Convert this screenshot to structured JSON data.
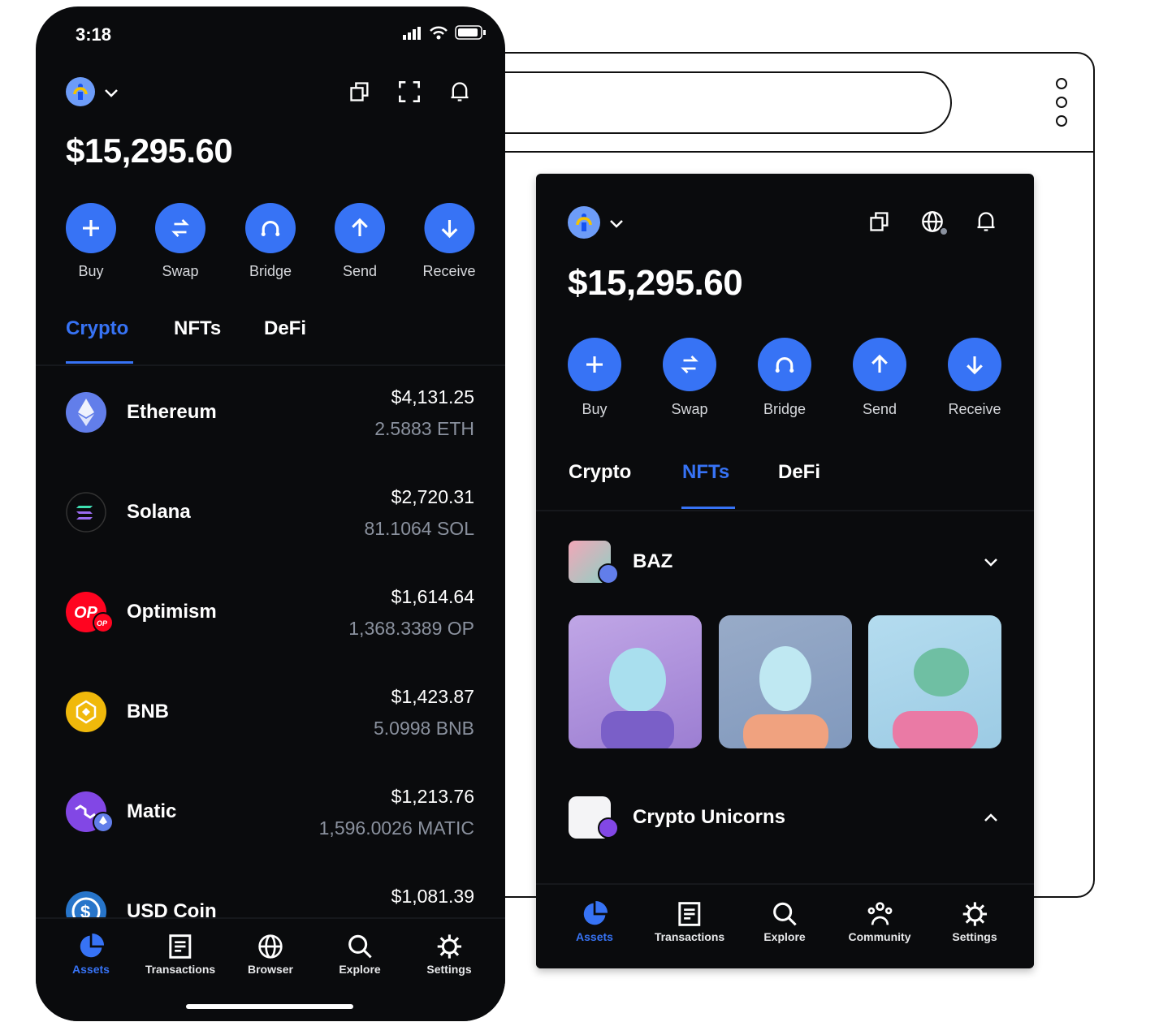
{
  "colors": {
    "accent": "#3773f5",
    "background": "#0a0b0d",
    "secondary_text": "#8a919e"
  },
  "mobile": {
    "status_bar": {
      "time": "3:18",
      "icons": [
        "signal-icon",
        "wifi-icon",
        "battery-icon"
      ]
    },
    "header_icons": [
      "copy-icon",
      "scan-icon",
      "bell-icon"
    ],
    "balance": "$15,295.60",
    "actions": [
      {
        "label": "Buy",
        "icon": "plus-icon"
      },
      {
        "label": "Swap",
        "icon": "swap-icon"
      },
      {
        "label": "Bridge",
        "icon": "bridge-icon"
      },
      {
        "label": "Send",
        "icon": "arrow-up-icon"
      },
      {
        "label": "Receive",
        "icon": "arrow-down-icon"
      }
    ],
    "tabs": [
      {
        "label": "Crypto",
        "active": true
      },
      {
        "label": "NFTs"
      },
      {
        "label": "DeFi"
      }
    ],
    "assets": [
      {
        "name": "Ethereum",
        "value": "$4,131.25",
        "amount": "2.5883 ETH",
        "icon": "ethereum-icon"
      },
      {
        "name": "Solana",
        "value": "$2,720.31",
        "amount": "81.1064 SOL",
        "icon": "solana-icon"
      },
      {
        "name": "Optimism",
        "value": "$1,614.64",
        "amount": "1,368.3389 OP",
        "icon": "optimism-icon"
      },
      {
        "name": "BNB",
        "value": "$1,423.87",
        "amount": "5.0998 BNB",
        "icon": "bnb-icon"
      },
      {
        "name": "Matic",
        "value": "$1,213.76",
        "amount": "1,596.0026 MATIC",
        "icon": "matic-icon"
      },
      {
        "name": "USD Coin",
        "value": "$1,081.39",
        "amount": "",
        "icon": "usdc-icon"
      }
    ],
    "nav": [
      {
        "label": "Assets",
        "icon": "pie-chart-icon",
        "active": true
      },
      {
        "label": "Transactions",
        "icon": "receipt-icon"
      },
      {
        "label": "Browser",
        "icon": "globe-icon"
      },
      {
        "label": "Explore",
        "icon": "search-icon"
      },
      {
        "label": "Settings",
        "icon": "gear-icon"
      }
    ]
  },
  "extension": {
    "header_icons": [
      "copy-icon",
      "globe-icon",
      "bell-icon"
    ],
    "balance": "$15,295.60",
    "actions": [
      {
        "label": "Buy",
        "icon": "plus-icon"
      },
      {
        "label": "Swap",
        "icon": "swap-icon"
      },
      {
        "label": "Bridge",
        "icon": "bridge-icon"
      },
      {
        "label": "Send",
        "icon": "arrow-up-icon"
      },
      {
        "label": "Receive",
        "icon": "arrow-down-icon"
      }
    ],
    "tabs": [
      {
        "label": "Crypto"
      },
      {
        "label": "NFTs",
        "active": true
      },
      {
        "label": "DeFi"
      }
    ],
    "collections": [
      {
        "name": "BAZ",
        "expanded": true
      },
      {
        "name": "Crypto Unicorns",
        "expanded": false
      }
    ],
    "nav": [
      {
        "label": "Assets",
        "icon": "pie-chart-icon",
        "active": true
      },
      {
        "label": "Transactions",
        "icon": "receipt-icon"
      },
      {
        "label": "Explore",
        "icon": "search-icon"
      },
      {
        "label": "Community",
        "icon": "community-icon"
      },
      {
        "label": "Settings",
        "icon": "gear-icon"
      }
    ]
  }
}
